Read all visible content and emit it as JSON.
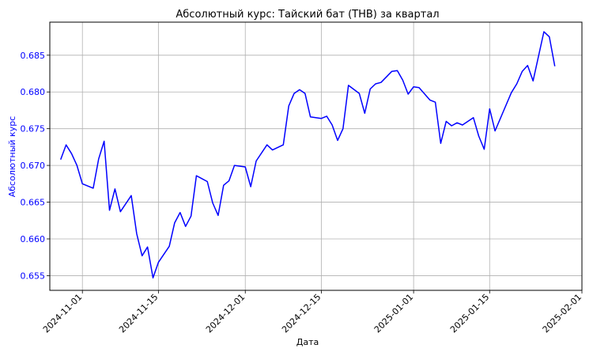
{
  "chart_data": {
    "type": "line",
    "title": "Абсолютный курс: Тайский бат (THB) за квартал",
    "xlabel": "Дата",
    "ylabel": "Абсолютный курс",
    "x_range": [
      "2024-10-26",
      "2025-02-01"
    ],
    "ylim": [
      0.653,
      0.6895
    ],
    "grid": true,
    "y_ticks": [
      0.655,
      0.66,
      0.665,
      0.67,
      0.675,
      0.68,
      0.685
    ],
    "y_tick_labels": [
      "0.655",
      "0.660",
      "0.665",
      "0.670",
      "0.675",
      "0.680",
      "0.685"
    ],
    "x_ticks": [
      "2024-11-01",
      "2024-11-15",
      "2024-12-01",
      "2024-12-15",
      "2025-01-01",
      "2025-01-15",
      "2025-02-01"
    ],
    "x_tick_labels": [
      "2024-11-01",
      "2024-11-15",
      "2024-12-01",
      "2024-12-15",
      "2025-01-01",
      "2025-01-15",
      "2025-02-01"
    ],
    "line_color": "#0000ff",
    "axis_label_color": "#0000ff",
    "series": [
      {
        "x": [
          "2024-10-28",
          "2024-10-29",
          "2024-10-30",
          "2024-10-31",
          "2024-11-01",
          "2024-11-03",
          "2024-11-04",
          "2024-11-05",
          "2024-11-06",
          "2024-11-07",
          "2024-11-08",
          "2024-11-10",
          "2024-11-11",
          "2024-11-12",
          "2024-11-13",
          "2024-11-14",
          "2024-11-15",
          "2024-11-17",
          "2024-11-18",
          "2024-11-19",
          "2024-11-20",
          "2024-11-21",
          "2024-11-22",
          "2024-11-24",
          "2024-11-25",
          "2024-11-26",
          "2024-11-27",
          "2024-11-28",
          "2024-11-29",
          "2024-12-01",
          "2024-12-02",
          "2024-12-03",
          "2024-12-05",
          "2024-12-06",
          "2024-12-08",
          "2024-12-09",
          "2024-12-10",
          "2024-12-11",
          "2024-12-12",
          "2024-12-13",
          "2024-12-15",
          "2024-12-16",
          "2024-12-17",
          "2024-12-18",
          "2024-12-19",
          "2024-12-20",
          "2024-12-22",
          "2024-12-23",
          "2024-12-24",
          "2024-12-25",
          "2024-12-26",
          "2024-12-28",
          "2024-12-29",
          "2024-12-30",
          "2024-12-31",
          "2025-01-01",
          "2025-01-02",
          "2025-01-04",
          "2025-01-05",
          "2025-01-06",
          "2025-01-07",
          "2025-01-08",
          "2025-01-09",
          "2025-01-10",
          "2025-01-12",
          "2025-01-13",
          "2025-01-14",
          "2025-01-15",
          "2025-01-16",
          "2025-01-19",
          "2025-01-20",
          "2025-01-21",
          "2025-01-22",
          "2025-01-23",
          "2025-01-25",
          "2025-01-26",
          "2025-01-27"
        ],
        "y": [
          0.6708,
          0.6728,
          0.6716,
          0.67,
          0.6675,
          0.6669,
          0.6709,
          0.6733,
          0.6639,
          0.6668,
          0.6637,
          0.6659,
          0.6607,
          0.6577,
          0.6589,
          0.6547,
          0.6568,
          0.659,
          0.6622,
          0.6636,
          0.6617,
          0.6631,
          0.6686,
          0.6678,
          0.6649,
          0.6632,
          0.6673,
          0.6679,
          0.67,
          0.6698,
          0.6671,
          0.6706,
          0.6728,
          0.6721,
          0.6728,
          0.6781,
          0.6798,
          0.6803,
          0.6798,
          0.6766,
          0.6764,
          0.6767,
          0.6755,
          0.6734,
          0.675,
          0.6809,
          0.6798,
          0.6771,
          0.6804,
          0.6811,
          0.6813,
          0.6828,
          0.6829,
          0.6816,
          0.6797,
          0.6807,
          0.6806,
          0.6789,
          0.6786,
          0.673,
          0.676,
          0.6754,
          0.6758,
          0.6755,
          0.6765,
          0.674,
          0.6722,
          0.6777,
          0.6747,
          0.6799,
          0.6811,
          0.6828,
          0.6836,
          0.6815,
          0.6882,
          0.6875,
          0.6835
        ]
      }
    ]
  }
}
